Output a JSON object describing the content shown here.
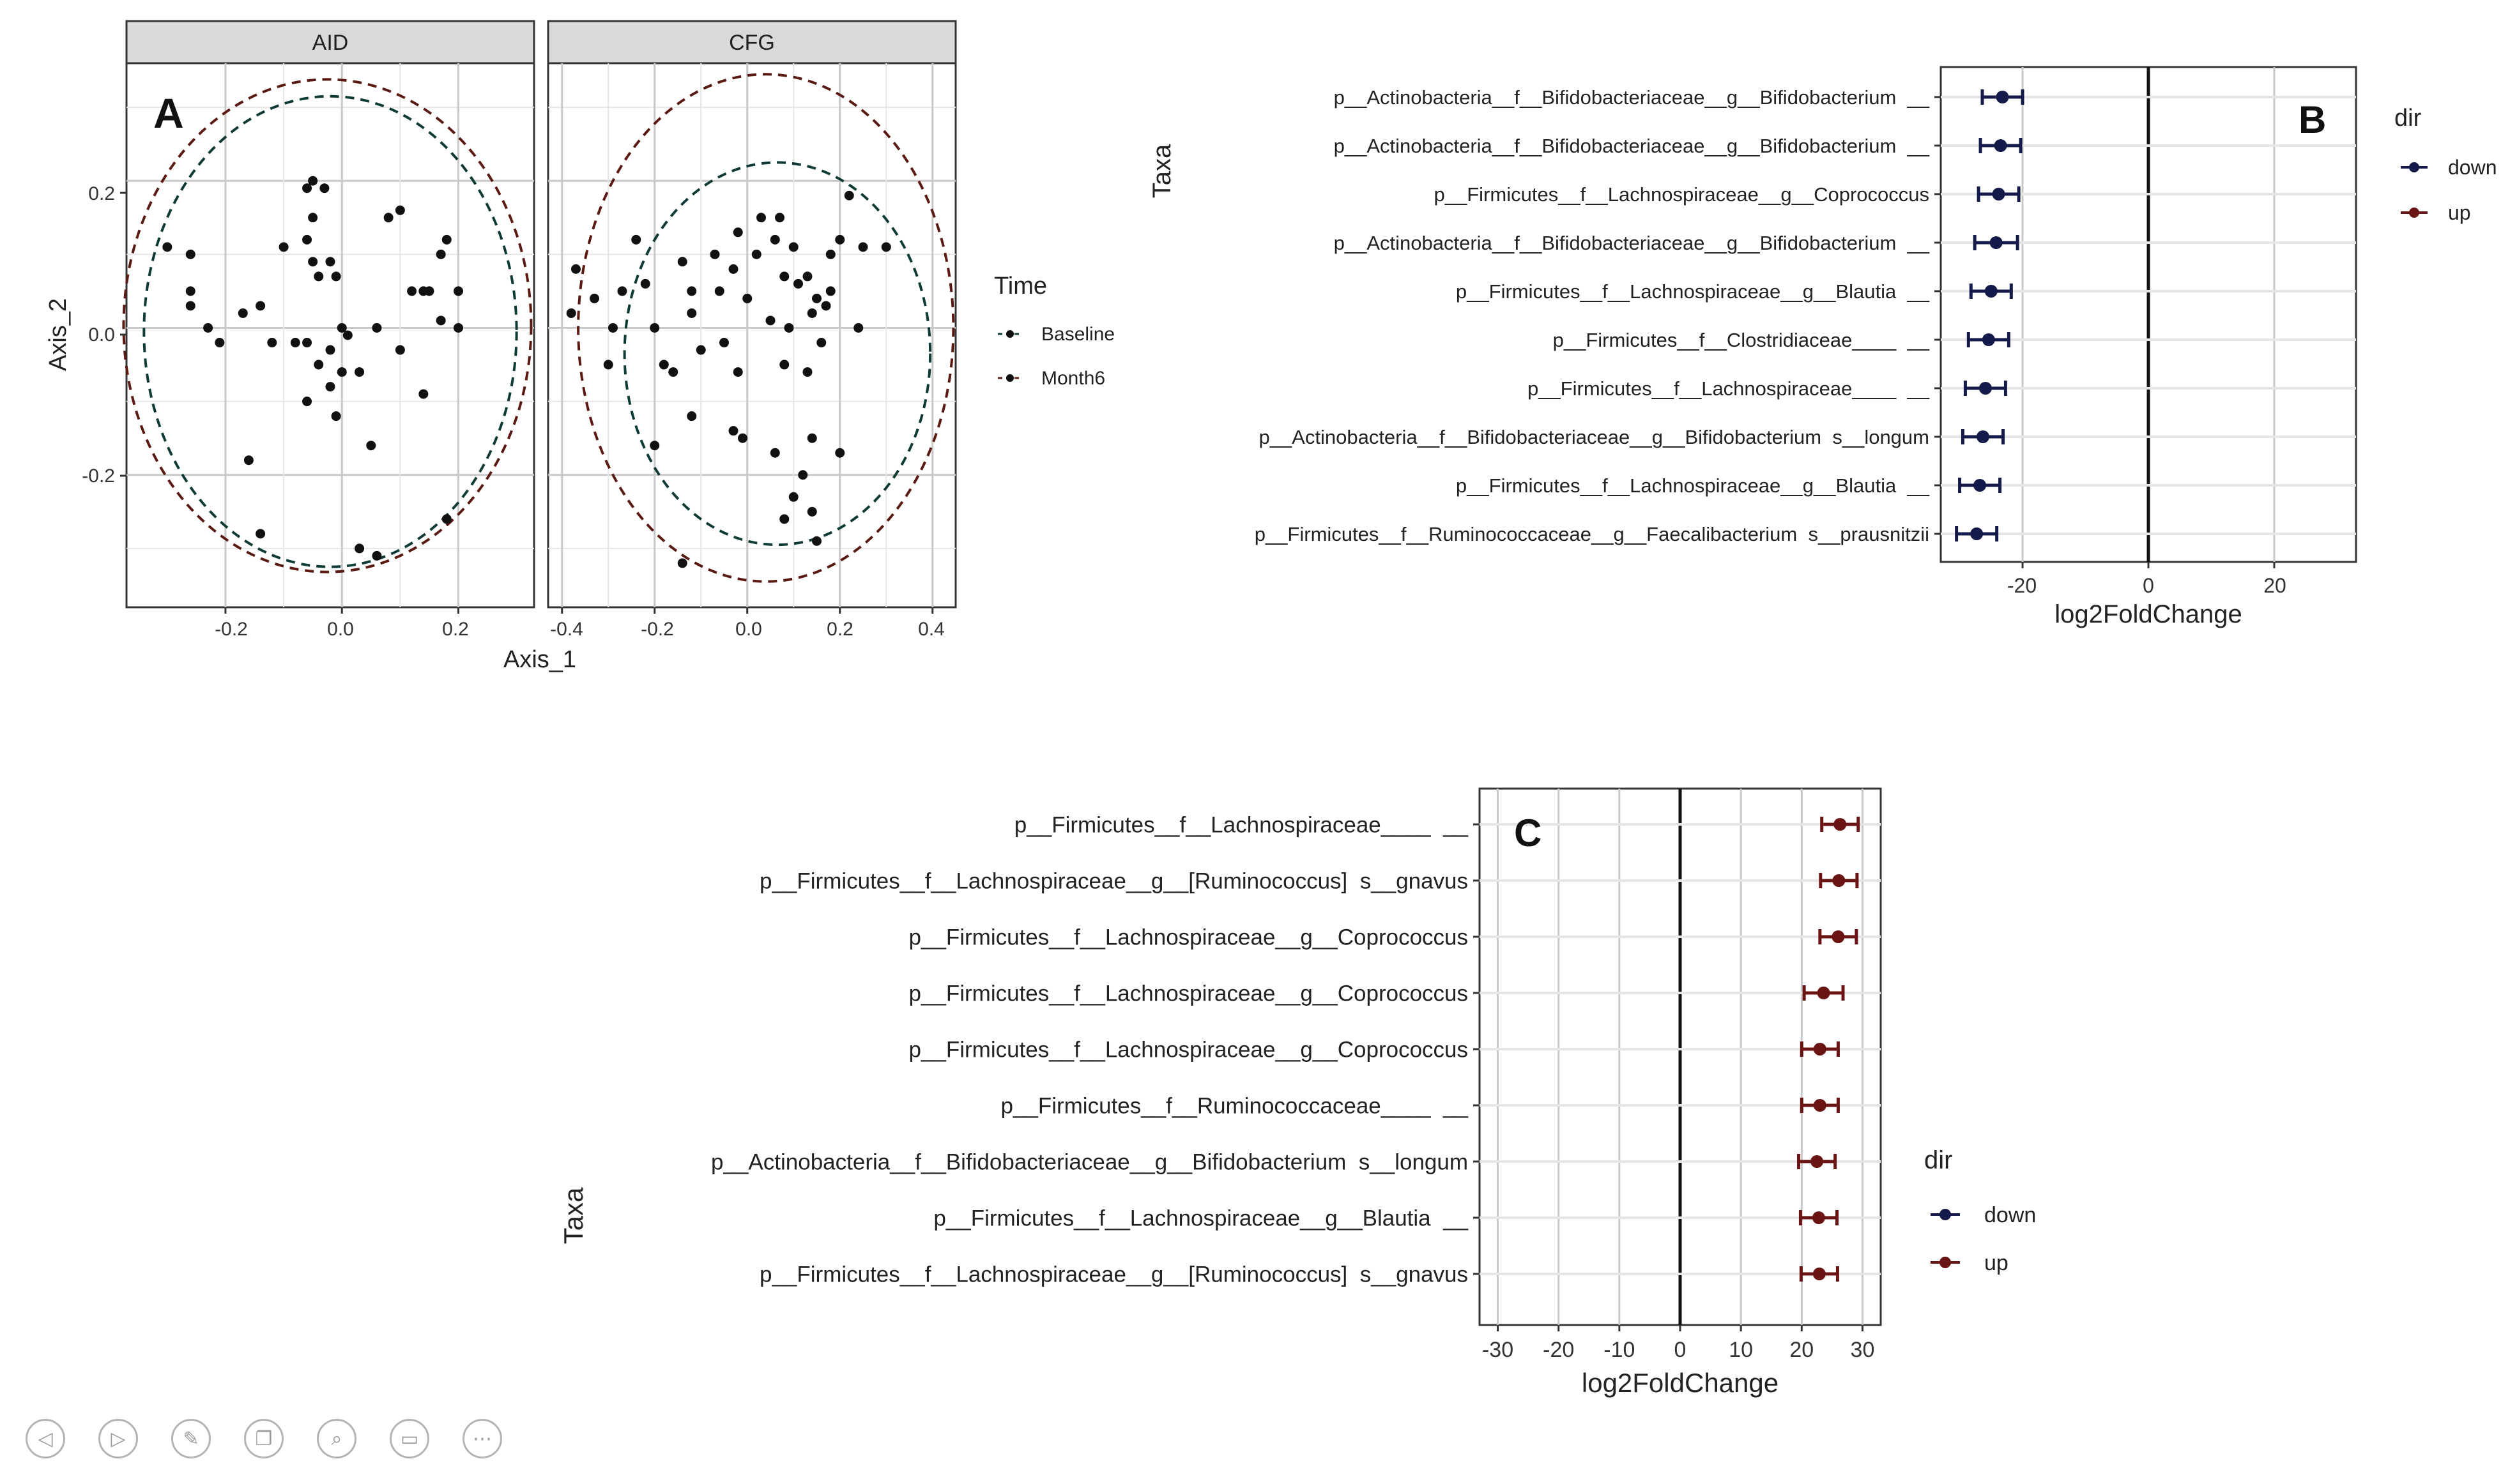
{
  "panel_a": {
    "letter": "A",
    "facets": [
      "AID",
      "CFG"
    ],
    "xlabel": "Axis_1",
    "ylabel": "Axis_2",
    "legend_title": "Time",
    "legend_items": [
      "Baseline",
      "Month6"
    ],
    "x_ticks": [
      [
        "-0.2",
        "0.0",
        "0.2"
      ],
      [
        "-0.4",
        "-0.2",
        "0.0",
        "0.2",
        "0.4"
      ]
    ],
    "y_ticks": [
      "0.2",
      "0.0",
      "-0.2"
    ]
  },
  "panel_b": {
    "letter": "B",
    "taxa": [
      "p__Actinobacteria__f__Bifidobacteriaceae__g__Bifidobacterium  __",
      "p__Actinobacteria__f__Bifidobacteriaceae__g__Bifidobacterium  __",
      "p__Firmicutes__f__Lachnospiraceae__g__Coprococcus",
      "p__Actinobacteria__f__Bifidobacteriaceae__g__Bifidobacterium  __",
      "p__Firmicutes__f__Lachnospiraceae__g__Blautia  __",
      "p__Firmicutes__f__Clostridiaceae____  __",
      "p__Firmicutes__f__Lachnospiraceae____  __",
      "p__Actinobacteria__f__Bifidobacteriaceae__g__Bifidobacterium  s__longum",
      "p__Firmicutes__f__Lachnospiraceae__g__Blautia  __",
      "p__Firmicutes__f__Ruminococcaceae__g__Faecalibacterium  s__prausnitzii"
    ],
    "x_ticks": [
      "-20",
      "0",
      "20"
    ],
    "xlabel": "log2FoldChange",
    "ylabel": "Taxa",
    "legend_title": "dir",
    "legend_items": [
      "down",
      "up"
    ]
  },
  "panel_c": {
    "letter": "C",
    "taxa": [
      "p__Firmicutes__f__Lachnospiraceae____  __",
      "p__Firmicutes__f__Lachnospiraceae__g__[Ruminococcus]  s__gnavus",
      "p__Firmicutes__f__Lachnospiraceae__g__Coprococcus",
      "p__Firmicutes__f__Lachnospiraceae__g__Coprococcus",
      "p__Firmicutes__f__Lachnospiraceae__g__Coprococcus",
      "p__Firmicutes__f__Ruminococcaceae____  __",
      "p__Actinobacteria__f__Bifidobacteriaceae__g__Bifidobacterium  s__longum",
      "p__Firmicutes__f__Lachnospiraceae__g__Blautia  __",
      "p__Firmicutes__f__Lachnospiraceae__g__[Ruminococcus]  s__gnavus"
    ],
    "x_ticks": [
      "-30",
      "-20",
      "-10",
      "0",
      "10",
      "20",
      "30"
    ],
    "xlabel": "log2FoldChange",
    "ylabel": "Taxa",
    "legend_title": "dir",
    "legend_items": [
      "down",
      "up"
    ]
  },
  "colors": {
    "baseline": "#0f3b36",
    "month6": "#5a1a12",
    "down": "#141b4a",
    "up": "#6b1414",
    "strip": "#d9d9d9",
    "grid": "#e6e6e6",
    "grid_strong": "#c8c8c8"
  },
  "toolbar": {
    "icons": [
      "previous-icon",
      "next-icon",
      "pen-icon",
      "copy-icon",
      "zoom-icon",
      "subtitle-icon",
      "more-icon"
    ],
    "glyphs": [
      "◁",
      "▷",
      "✎",
      "❐",
      "⌕",
      "▭",
      "⋯"
    ]
  },
  "chart_data": [
    {
      "type": "scatter",
      "title": "AID",
      "xlabel": "Axis_1",
      "ylabel": "Axis_2",
      "xlim": [
        -0.37,
        0.33
      ],
      "ylim": [
        -0.38,
        0.36
      ],
      "legend": "right",
      "series": [
        {
          "name": "Baseline",
          "ellipse": {
            "cx": -0.02,
            "cy": -0.005,
            "rx": 0.32,
            "ry": 0.32
          }
        },
        {
          "name": "Month6",
          "ellipse": {
            "cx": -0.025,
            "cy": 0.003,
            "rx": 0.35,
            "ry": 0.335
          }
        }
      ],
      "points": [
        {
          "x": -0.26,
          "y": 0.1
        },
        {
          "x": -0.3,
          "y": 0.11
        },
        {
          "x": -0.26,
          "y": 0.03
        },
        {
          "x": -0.26,
          "y": 0.05
        },
        {
          "x": -0.23,
          "y": 0.0
        },
        {
          "x": -0.21,
          "y": -0.02
        },
        {
          "x": -0.14,
          "y": 0.03
        },
        {
          "x": -0.12,
          "y": -0.02
        },
        {
          "x": -0.17,
          "y": 0.02
        },
        {
          "x": -0.16,
          "y": -0.18
        },
        {
          "x": -0.14,
          "y": -0.28
        },
        {
          "x": -0.08,
          "y": -0.02
        },
        {
          "x": -0.05,
          "y": 0.2
        },
        {
          "x": -0.06,
          "y": 0.19
        },
        {
          "x": -0.03,
          "y": 0.19
        },
        {
          "x": -0.05,
          "y": 0.15
        },
        {
          "x": -0.06,
          "y": 0.12
        },
        {
          "x": -0.04,
          "y": 0.07
        },
        {
          "x": -0.05,
          "y": 0.09
        },
        {
          "x": -0.1,
          "y": 0.11
        },
        {
          "x": -0.06,
          "y": -0.02
        },
        {
          "x": -0.04,
          "y": -0.05
        },
        {
          "x": -0.01,
          "y": 0.07
        },
        {
          "x": -0.02,
          "y": 0.09
        },
        {
          "x": -0.02,
          "y": -0.03
        },
        {
          "x": 0.0,
          "y": -0.06
        },
        {
          "x": -0.02,
          "y": -0.08
        },
        {
          "x": -0.06,
          "y": -0.1
        },
        {
          "x": -0.01,
          "y": -0.12
        },
        {
          "x": 0.01,
          "y": -0.01
        },
        {
          "x": 0.03,
          "y": -0.06
        },
        {
          "x": 0.06,
          "y": 0.0
        },
        {
          "x": 0.05,
          "y": -0.16
        },
        {
          "x": 0.08,
          "y": 0.15
        },
        {
          "x": 0.1,
          "y": 0.16
        },
        {
          "x": 0.12,
          "y": 0.05
        },
        {
          "x": 0.1,
          "y": -0.03
        },
        {
          "x": 0.14,
          "y": 0.05
        },
        {
          "x": 0.14,
          "y": -0.09
        },
        {
          "x": 0.15,
          "y": 0.05
        },
        {
          "x": 0.17,
          "y": 0.1
        },
        {
          "x": 0.18,
          "y": 0.12
        },
        {
          "x": 0.17,
          "y": 0.01
        },
        {
          "x": 0.2,
          "y": 0.05
        },
        {
          "x": 0.2,
          "y": 0.0
        },
        {
          "x": 0.03,
          "y": -0.3
        },
        {
          "x": 0.06,
          "y": -0.31
        },
        {
          "x": 0.18,
          "y": -0.26
        },
        {
          "x": 0.0,
          "y": 0.0
        }
      ]
    },
    {
      "type": "scatter",
      "title": "CFG",
      "xlabel": "Axis_1",
      "ylabel": "Axis_2",
      "xlim": [
        -0.43,
        0.45
      ],
      "ylim": [
        -0.38,
        0.36
      ],
      "legend": "right",
      "series": [
        {
          "name": "Baseline",
          "ellipse": {
            "cx": 0.065,
            "cy": -0.035,
            "rx": 0.33,
            "ry": 0.26
          }
        },
        {
          "name": "Month6",
          "ellipse": {
            "cx": 0.04,
            "cy": 0.0,
            "rx": 0.405,
            "ry": 0.345
          }
        }
      ],
      "points": [
        {
          "x": -0.37,
          "y": 0.08
        },
        {
          "x": -0.38,
          "y": 0.02
        },
        {
          "x": -0.33,
          "y": 0.04
        },
        {
          "x": -0.3,
          "y": -0.05
        },
        {
          "x": -0.29,
          "y": 0.0
        },
        {
          "x": -0.27,
          "y": 0.05
        },
        {
          "x": -0.24,
          "y": 0.12
        },
        {
          "x": -0.22,
          "y": 0.06
        },
        {
          "x": -0.2,
          "y": 0.0
        },
        {
          "x": -0.18,
          "y": -0.05
        },
        {
          "x": -0.16,
          "y": -0.06
        },
        {
          "x": -0.14,
          "y": 0.09
        },
        {
          "x": -0.12,
          "y": 0.05
        },
        {
          "x": -0.1,
          "y": -0.03
        },
        {
          "x": -0.07,
          "y": 0.1
        },
        {
          "x": -0.06,
          "y": 0.05
        },
        {
          "x": -0.05,
          "y": -0.02
        },
        {
          "x": -0.03,
          "y": 0.08
        },
        {
          "x": -0.02,
          "y": -0.06
        },
        {
          "x": -0.02,
          "y": 0.13
        },
        {
          "x": 0.0,
          "y": 0.04
        },
        {
          "x": 0.02,
          "y": 0.1
        },
        {
          "x": 0.03,
          "y": 0.15
        },
        {
          "x": 0.05,
          "y": 0.01
        },
        {
          "x": 0.06,
          "y": 0.12
        },
        {
          "x": 0.07,
          "y": 0.15
        },
        {
          "x": 0.08,
          "y": 0.07
        },
        {
          "x": 0.08,
          "y": -0.05
        },
        {
          "x": 0.09,
          "y": 0.0
        },
        {
          "x": 0.1,
          "y": 0.11
        },
        {
          "x": 0.11,
          "y": 0.06
        },
        {
          "x": 0.13,
          "y": 0.07
        },
        {
          "x": 0.14,
          "y": 0.02
        },
        {
          "x": 0.15,
          "y": 0.04
        },
        {
          "x": 0.16,
          "y": -0.02
        },
        {
          "x": 0.17,
          "y": 0.03
        },
        {
          "x": 0.18,
          "y": 0.1
        },
        {
          "x": 0.18,
          "y": 0.05
        },
        {
          "x": 0.2,
          "y": 0.12
        },
        {
          "x": 0.22,
          "y": 0.18
        },
        {
          "x": 0.24,
          "y": 0.0
        },
        {
          "x": 0.25,
          "y": 0.11
        },
        {
          "x": 0.3,
          "y": 0.11
        },
        {
          "x": 0.14,
          "y": -0.15
        },
        {
          "x": 0.12,
          "y": -0.2
        },
        {
          "x": 0.1,
          "y": -0.23
        },
        {
          "x": 0.08,
          "y": -0.26
        },
        {
          "x": 0.14,
          "y": -0.25
        },
        {
          "x": 0.15,
          "y": -0.29
        },
        {
          "x": -0.03,
          "y": -0.14
        },
        {
          "x": -0.01,
          "y": -0.15
        },
        {
          "x": -0.12,
          "y": -0.12
        },
        {
          "x": -0.2,
          "y": -0.16
        },
        {
          "x": -0.14,
          "y": -0.32
        },
        {
          "x": 0.2,
          "y": -0.17
        },
        {
          "x": 0.06,
          "y": -0.17
        },
        {
          "x": -0.12,
          "y": 0.02
        },
        {
          "x": 0.13,
          "y": -0.06
        }
      ]
    },
    {
      "type": "scatter",
      "title": "B",
      "xlabel": "log2FoldChange",
      "ylabel": "Taxa",
      "xlim": [
        -33,
        33
      ],
      "legend": "right",
      "series": [
        {
          "name": "down",
          "errorbars": true
        }
      ],
      "values": [
        -23.2,
        -23.5,
        -23.8,
        -24.2,
        -25.0,
        -25.4,
        -25.9,
        -26.3,
        -26.8,
        -27.3
      ],
      "errors": [
        3.2,
        3.2,
        3.2,
        3.4,
        3.2,
        3.2,
        3.2,
        3.2,
        3.2,
        3.2
      ]
    },
    {
      "type": "scatter",
      "title": "C",
      "xlabel": "log2FoldChange",
      "ylabel": "Taxa",
      "xlim": [
        -33,
        33
      ],
      "legend": "right",
      "series": [
        {
          "name": "up",
          "errorbars": true
        }
      ],
      "values": [
        26.3,
        26.1,
        26.0,
        23.6,
        23.0,
        23.0,
        22.5,
        22.8,
        22.9
      ],
      "errors": [
        3.0,
        3.0,
        3.0,
        3.2,
        3.0,
        3.0,
        3.0,
        3.0,
        3.0
      ]
    }
  ]
}
